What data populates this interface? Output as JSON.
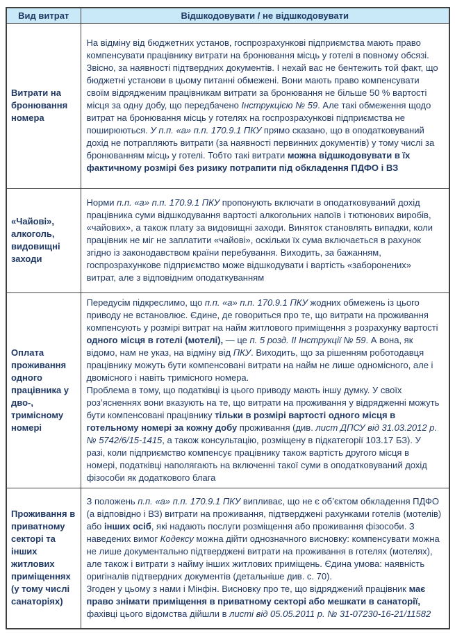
{
  "page": {
    "colors": {
      "header_bg": "#c9e8f8",
      "border": "#3f3f3f",
      "text": "#1f3864"
    }
  },
  "table": {
    "headers": [
      {
        "label": "Вид витрат"
      },
      {
        "label": "Відшкодовувати / не відшкодовувати"
      }
    ],
    "rows": [
      {
        "type": "Витрати на бронювання номера",
        "paragraphs": [
          [
            {
              "t": "На відміну від бюджетних установ, госпрозрахункові підприємства мають право компенсувати працівнику витрати на бронювання місць у готелі в повному обсязі. Звісно, за наявності підтвердних документів. І нехай вас не бентежить той факт, що бюджетні установи в цьому питанні обмежені. Вони мають право компенсувати своїм відрядженим працівникам витрати за бронювання не більше 50 % вартості місця за одну добу, що передбачено ",
              "s": ""
            },
            {
              "t": "Інструкцією № 59",
              "s": "i"
            },
            {
              "t": ". Але такі обмеження щодо витрат на бронювання місць у готелях на госпрозрахункові підприємства не поширюються. ",
              "s": ""
            },
            {
              "t": "У п.п. «а» п.п. 170.9.1 ПКУ",
              "s": "i"
            },
            {
              "t": " прямо сказано, що в оподатковуваний дохід не потрапляють витрати (за наявності первинних документів) у тому числі за бронюванням місць у готелі. Тобто такі витрати ",
              "s": ""
            },
            {
              "t": "можна відшкодовувати в їх фактичному розмірі без ризику потрапити під обкладення ПДФО і ВЗ",
              "s": "b"
            }
          ]
        ]
      },
      {
        "type": "«Чайові», алкоголь, видовищні заходи",
        "paragraphs": [
          [
            {
              "t": "Норми ",
              "s": ""
            },
            {
              "t": "п.п. «а» п.п. 170.9.1 ПКУ",
              "s": "i"
            },
            {
              "t": " пропонують включати в оподатковуваний дохід працівника суми відшкодування вартості алкогольних напоїв і тютюнових виробів, «чайових», а також плату за видовищні заходи. Виняток становлять випадки, коли працівник не міг не заплатити «чайові», оскільки їх сума включається в рахунок згідно із законодавством країни перебування. Виходить, за бажанням, госпрозрахункове підприємство може відшкодувати і вартість «заборонених» витрат, але з відповідним оподаткуванням",
              "s": ""
            }
          ]
        ]
      },
      {
        "type": "Оплата проживання одного працівника у дво-, тримісному номері",
        "paragraphs": [
          [
            {
              "t": "Передусім підкреслимо, що ",
              "s": ""
            },
            {
              "t": "п.п. «а» п.п. 170.9.1 ПКУ",
              "s": "i"
            },
            {
              "t": " жодних обмежень із цього приводу не встановлює. Єдине, де говориться про те, що витрати на проживання компенсують у розмірі витрат на найм житлового приміщення з розрахунку вартості ",
              "s": ""
            },
            {
              "t": "одного місця в готелі (мотелі),",
              "s": "b"
            },
            {
              "t": " — це ",
              "s": ""
            },
            {
              "t": "п. 5 розд. ІІ Інструкції № 59",
              "s": "i"
            },
            {
              "t": ". А вона, як відомо, нам не указ, на відміну від ",
              "s": ""
            },
            {
              "t": "ПКУ",
              "s": "i"
            },
            {
              "t": ". Виходить, що за рішенням роботодавця працівнику можуть бути компенсовані витрати на найм не лише одномісного, але і двомісного і навіть тримісного номера.",
              "s": ""
            }
          ],
          [
            {
              "t": "Проблема в тому, що податківці із цього приводу мають іншу думку. У своїх роз’ясненнях вони вказують на те, що витрати на проживання у відрядженні можуть бути компенсовані працівнику ",
              "s": ""
            },
            {
              "t": "тільки в розмірі вартості одного місця в готельному номері за кожну добу",
              "s": "b"
            },
            {
              "t": " проживання (див. ",
              "s": ""
            },
            {
              "t": "лист ДПСУ від 31.03.2012 р. № 5742/6/15-1415",
              "s": "i"
            },
            {
              "t": ", а також консультацію, розміщену в підкатегорії 103.17 БЗ). У разі, коли підприємство компенсує працівнику також вартість другого місця в номері, податківці наполягають на включенні такої суми в оподатковуваний дохід фізособи як додаткового блага",
              "s": ""
            }
          ]
        ]
      },
      {
        "type": "Проживання в приватному секторі та інших житлових приміщеннях (у тому числі санаторіях)",
        "paragraphs": [
          [
            {
              "t": "З положень ",
              "s": ""
            },
            {
              "t": "п.п. «а» п.п. 170.9.1 ПКУ",
              "s": "i"
            },
            {
              "t": " випливає, що не є об’єктом обкладення ПДФО (а відповідно і ВЗ) витрати на проживання, підтверджені рахунками готелів (мотелів) або ",
              "s": ""
            },
            {
              "t": "інших осіб",
              "s": "b"
            },
            {
              "t": ", які надають послуги розміщення або проживання фізособи. З наведених вимог ",
              "s": ""
            },
            {
              "t": "Кодексу",
              "s": "i"
            },
            {
              "t": " можна дійти однозначного висновку: компенсувати можна не лише документально підтверджені витрати на проживання в готелях (мотелях), але також і витрати з найму інших житлових приміщень. Єдина умова: наявність оригіналів підтвердних документів (детальніше див. с. 70).",
              "s": ""
            }
          ],
          [
            {
              "t": "Згоден у цьому з нами і Мінфін. Висновку про те, що відряджений працівник ",
              "s": ""
            },
            {
              "t": "має право знімати приміщення в приватному секторі або мешкати в санаторії,",
              "s": "b"
            },
            {
              "t": " фахівці цього відомства дійшли в ",
              "s": ""
            },
            {
              "t": "листі від 05.05.2011 р. № 31-07230-16-21/11582",
              "s": "i"
            }
          ]
        ]
      }
    ]
  }
}
